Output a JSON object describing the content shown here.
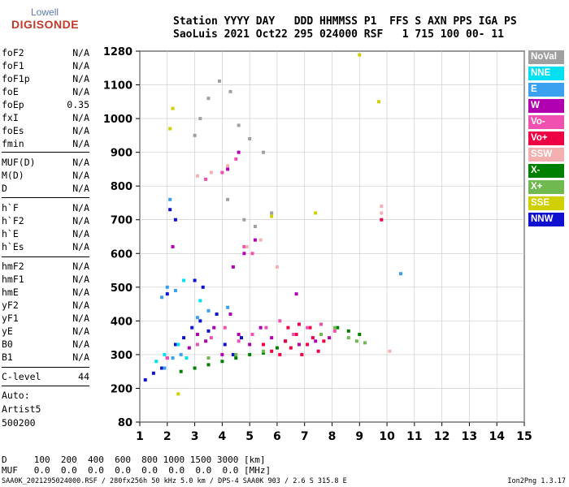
{
  "logo": {
    "line1": "Lowell",
    "line2": "DIGISONDE"
  },
  "header": {
    "line1": "Station YYYY DAY   DDD HHMMSS P1  FFS S AXN PPS IGA PS",
    "line2": "SaoLuis 2021 Oct22 295 024000 RSF   1 715 100 00- 11"
  },
  "params_group1": [
    {
      "name": "foF2",
      "value": "N/A"
    },
    {
      "name": "foF1",
      "value": "N/A"
    },
    {
      "name": "foF1p",
      "value": "N/A"
    },
    {
      "name": "foE",
      "value": "N/A"
    },
    {
      "name": "foEp",
      "value": "0.35"
    },
    {
      "name": "fxI",
      "value": "N/A"
    },
    {
      "name": "foEs",
      "value": "N/A"
    },
    {
      "name": "fmin",
      "value": "N/A"
    }
  ],
  "params_group2": [
    {
      "name": "MUF(D)",
      "value": "N/A"
    },
    {
      "name": "M(D)",
      "value": "N/A"
    },
    {
      "name": "D",
      "value": "N/A"
    }
  ],
  "params_group3": [
    {
      "name": "h`F",
      "value": "N/A"
    },
    {
      "name": "h`F2",
      "value": "N/A"
    },
    {
      "name": "h`E",
      "value": "N/A"
    },
    {
      "name": "h`Es",
      "value": "N/A"
    }
  ],
  "params_group4": [
    {
      "name": "hmF2",
      "value": "N/A"
    },
    {
      "name": "hmF1",
      "value": "N/A"
    },
    {
      "name": "hmE",
      "value": "N/A"
    },
    {
      "name": "yF2",
      "value": "N/A"
    },
    {
      "name": "yF1",
      "value": "N/A"
    },
    {
      "name": "yE",
      "value": "N/A"
    },
    {
      "name": "B0",
      "value": "N/A"
    },
    {
      "name": "B1",
      "value": "N/A"
    }
  ],
  "clevel": {
    "name": "C-level",
    "value": "44"
  },
  "auto": {
    "line1": "Auto:",
    "line2": "Artist5",
    "line3": "500200"
  },
  "bottom": {
    "d_line": "D     100  200  400  600  800 1000 1500 3000 [km]",
    "muf_line": "MUF   0.0  0.0  0.0  0.0  0.0  0.0  0.0  0.0 [MHz]"
  },
  "footer": {
    "left": "SAA0K_2021295024000.RSF / 280fx256h 50 kHz 5.0 km / DPS-4 SAA0K 903 / 2.6 S 315.8 E",
    "right": "Ion2Png 1.3.17"
  },
  "legend": [
    {
      "label": "NoVal",
      "color": "#a0a0a0"
    },
    {
      "label": "NNE",
      "color": "#00e0f0"
    },
    {
      "label": "E",
      "color": "#3aa0f0"
    },
    {
      "label": "W",
      "color": "#b000b0"
    },
    {
      "label": "Vo-",
      "color": "#f050b0"
    },
    {
      "label": "Vo+",
      "color": "#ee0044"
    },
    {
      "label": "SSW",
      "color": "#f4b0b0"
    },
    {
      "label": "X-",
      "color": "#008000"
    },
    {
      "label": "X+",
      "color": "#70b850"
    },
    {
      "label": "SSE",
      "color": "#d0d000"
    },
    {
      "label": "NNW",
      "color": "#1010d0"
    }
  ],
  "chart_data": {
    "type": "scatter",
    "x_ticks": [
      1,
      2,
      3,
      4,
      5,
      6,
      7,
      8,
      9,
      10,
      11,
      12,
      13,
      14,
      15
    ],
    "y_ticks": [
      80,
      200,
      300,
      400,
      500,
      600,
      700,
      800,
      900,
      1000,
      1100,
      1280
    ],
    "xlim": [
      1,
      15
    ],
    "ylim": [
      80,
      1280
    ],
    "grid": true,
    "series": [
      {
        "name": "NNW",
        "points": [
          [
            1.2,
            225
          ],
          [
            1.5,
            245
          ],
          [
            1.8,
            260
          ],
          [
            2.0,
            290
          ],
          [
            2.3,
            330
          ],
          [
            2.6,
            350
          ],
          [
            2.9,
            380
          ],
          [
            3.2,
            400
          ],
          [
            3.5,
            370
          ],
          [
            3.8,
            420
          ],
          [
            4.1,
            330
          ],
          [
            4.4,
            300
          ],
          [
            4.7,
            350
          ],
          [
            2.0,
            480
          ],
          [
            2.1,
            730
          ],
          [
            2.3,
            700
          ],
          [
            3.0,
            520
          ],
          [
            3.3,
            500
          ]
        ]
      },
      {
        "name": "W",
        "points": [
          [
            2.8,
            320
          ],
          [
            3.1,
            360
          ],
          [
            3.4,
            340
          ],
          [
            3.7,
            380
          ],
          [
            4.0,
            300
          ],
          [
            4.3,
            420
          ],
          [
            4.6,
            360
          ],
          [
            5.0,
            330
          ],
          [
            5.4,
            380
          ],
          [
            5.8,
            350
          ],
          [
            6.3,
            340
          ],
          [
            6.8,
            330
          ],
          [
            7.4,
            340
          ],
          [
            7.9,
            350
          ],
          [
            4.4,
            560
          ],
          [
            4.8,
            600
          ],
          [
            5.2,
            640
          ],
          [
            4.2,
            850
          ],
          [
            4.6,
            900
          ],
          [
            6.7,
            480
          ],
          [
            2.2,
            620
          ]
        ]
      },
      {
        "name": "Vo+",
        "points": [
          [
            6.1,
            300
          ],
          [
            6.3,
            340
          ],
          [
            6.5,
            320
          ],
          [
            6.7,
            360
          ],
          [
            6.9,
            300
          ],
          [
            7.1,
            330
          ],
          [
            7.3,
            350
          ],
          [
            7.5,
            310
          ],
          [
            7.7,
            340
          ],
          [
            6.4,
            380
          ],
          [
            6.8,
            390
          ],
          [
            7.2,
            380
          ],
          [
            5.8,
            310
          ],
          [
            5.5,
            330
          ],
          [
            9.8,
            700
          ]
        ]
      },
      {
        "name": "Vo-",
        "points": [
          [
            3.1,
            330
          ],
          [
            3.6,
            350
          ],
          [
            4.1,
            380
          ],
          [
            4.6,
            340
          ],
          [
            5.1,
            360
          ],
          [
            5.6,
            380
          ],
          [
            6.1,
            400
          ],
          [
            6.6,
            360
          ],
          [
            7.1,
            380
          ],
          [
            7.6,
            390
          ],
          [
            8.1,
            370
          ],
          [
            4.0,
            840
          ],
          [
            4.5,
            880
          ],
          [
            3.4,
            820
          ],
          [
            4.8,
            620
          ],
          [
            5.1,
            600
          ],
          [
            2.0,
            290
          ]
        ]
      },
      {
        "name": "X-",
        "points": [
          [
            2.5,
            250
          ],
          [
            3.0,
            260
          ],
          [
            3.5,
            270
          ],
          [
            4.0,
            280
          ],
          [
            4.5,
            290
          ],
          [
            5.0,
            300
          ],
          [
            5.5,
            305
          ],
          [
            6.0,
            320
          ],
          [
            8.2,
            380
          ],
          [
            8.6,
            370
          ],
          [
            9.0,
            360
          ]
        ]
      },
      {
        "name": "X+",
        "points": [
          [
            3.5,
            290
          ],
          [
            4.5,
            300
          ],
          [
            5.5,
            310
          ],
          [
            7.6,
            360
          ],
          [
            8.1,
            380
          ],
          [
            8.6,
            350
          ],
          [
            8.9,
            340
          ],
          [
            9.2,
            335
          ]
        ]
      },
      {
        "name": "E",
        "points": [
          [
            1.9,
            260
          ],
          [
            2.2,
            290
          ],
          [
            2.5,
            300
          ],
          [
            1.8,
            470
          ],
          [
            2.0,
            500
          ],
          [
            2.3,
            490
          ],
          [
            3.1,
            410
          ],
          [
            3.5,
            430
          ],
          [
            4.2,
            440
          ],
          [
            2.1,
            760
          ],
          [
            10.5,
            540
          ]
        ]
      },
      {
        "name": "NNE",
        "points": [
          [
            1.6,
            280
          ],
          [
            1.9,
            300
          ],
          [
            2.4,
            330
          ],
          [
            2.7,
            290
          ],
          [
            2.6,
            520
          ],
          [
            3.2,
            460
          ]
        ]
      },
      {
        "name": "SSE",
        "points": [
          [
            2.1,
            970
          ],
          [
            2.2,
            1030
          ],
          [
            5.8,
            710
          ],
          [
            7.4,
            720
          ],
          [
            9.0,
            1260
          ],
          [
            9.7,
            1050
          ],
          [
            2.4,
            180
          ]
        ]
      },
      {
        "name": "SSW",
        "points": [
          [
            3.1,
            830
          ],
          [
            3.6,
            840
          ],
          [
            4.2,
            860
          ],
          [
            4.9,
            620
          ],
          [
            5.4,
            640
          ],
          [
            6.0,
            560
          ],
          [
            9.8,
            720
          ],
          [
            9.8,
            740
          ],
          [
            10.1,
            310
          ]
        ]
      },
      {
        "name": "NoVal",
        "points": [
          [
            3.2,
            1000
          ],
          [
            3.5,
            1060
          ],
          [
            3.9,
            1120
          ],
          [
            4.3,
            1080
          ],
          [
            4.6,
            980
          ],
          [
            5.0,
            940
          ],
          [
            5.5,
            900
          ],
          [
            3.0,
            950
          ],
          [
            4.2,
            760
          ],
          [
            4.8,
            700
          ],
          [
            5.2,
            680
          ],
          [
            5.8,
            720
          ]
        ]
      }
    ]
  }
}
